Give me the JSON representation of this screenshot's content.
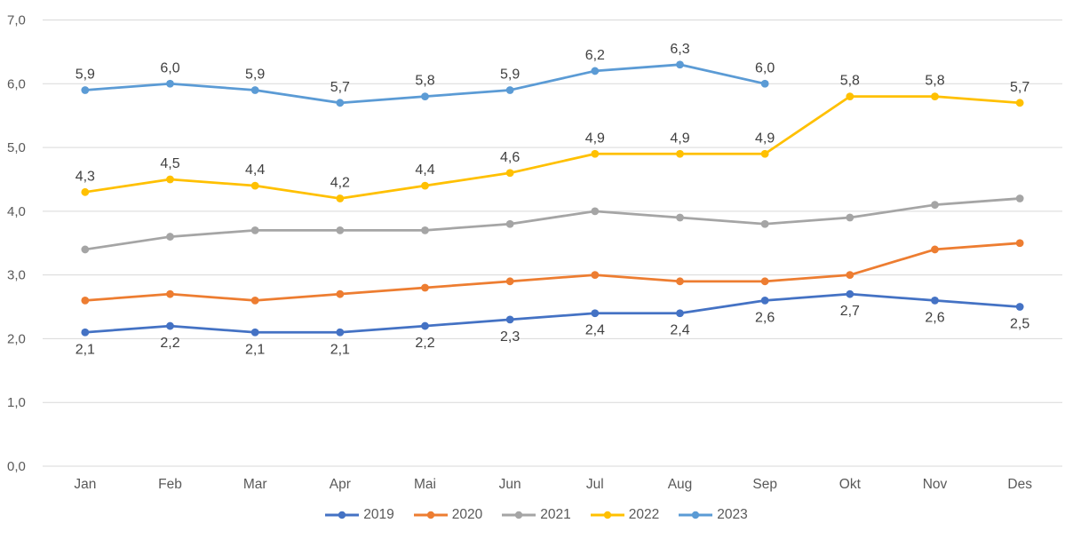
{
  "page": {
    "background_color": "#ffffff"
  },
  "chart_data": {
    "type": "line",
    "title": "",
    "xlabel": "",
    "ylabel": "",
    "categories": [
      "Jan",
      "Feb",
      "Mar",
      "Apr",
      "Mai",
      "Jun",
      "Jul",
      "Aug",
      "Sep",
      "Okt",
      "Nov",
      "Des"
    ],
    "series": [
      {
        "name": "2019",
        "color": "#4472C4",
        "values": [
          2.1,
          2.2,
          2.1,
          2.1,
          2.2,
          2.3,
          2.4,
          2.4,
          2.6,
          2.7,
          2.6,
          2.5
        ],
        "data_labels": [
          "2,1",
          "2,2",
          "2,1",
          "2,1",
          "2,2",
          "2,3",
          "2,4",
          "2,4",
          "2,6",
          "2,7",
          "2,6",
          "2,5"
        ],
        "label_position": "below"
      },
      {
        "name": "2020",
        "color": "#ED7D31",
        "values": [
          2.6,
          2.7,
          2.6,
          2.7,
          2.8,
          2.9,
          3.0,
          2.9,
          2.9,
          3.0,
          3.4,
          3.5
        ],
        "data_labels": null,
        "label_position": "none"
      },
      {
        "name": "2021",
        "color": "#A5A5A5",
        "values": [
          3.4,
          3.6,
          3.7,
          3.7,
          3.7,
          3.8,
          4.0,
          3.9,
          3.8,
          3.9,
          4.1,
          4.2
        ],
        "data_labels": null,
        "label_position": "none"
      },
      {
        "name": "2022",
        "color": "#FFC000",
        "values": [
          4.3,
          4.5,
          4.4,
          4.2,
          4.4,
          4.6,
          4.9,
          4.9,
          4.9,
          5.8,
          5.8,
          5.7
        ],
        "data_labels": [
          "4,3",
          "4,5",
          "4,4",
          "4,2",
          "4,4",
          "4,6",
          "4,9",
          "4,9",
          "4,9",
          "5,8",
          "5,8",
          "5,7"
        ],
        "label_position": "above"
      },
      {
        "name": "2023",
        "color": "#5B9BD5",
        "values": [
          5.9,
          6.0,
          5.9,
          5.7,
          5.8,
          5.9,
          6.2,
          6.3,
          6.0
        ],
        "data_labels": [
          "5,9",
          "6,0",
          "5,9",
          "5,7",
          "5,8",
          "5,9",
          "6,2",
          "6,3",
          "6,0"
        ],
        "label_position": "above"
      }
    ],
    "ylim": [
      0,
      7
    ],
    "ytick_step": 1,
    "ytick_labels": [
      "0,0",
      "1,0",
      "2,0",
      "3,0",
      "4,0",
      "5,0",
      "6,0",
      "7,0"
    ],
    "decimal_separator": ",",
    "grid": true,
    "gridline_color": "#D9D9D9",
    "axis_text_color": "#595959",
    "data_label_color": "#404040",
    "legend_position": "bottom",
    "legend_labels": [
      "2019",
      "2020",
      "2021",
      "2022",
      "2023"
    ]
  }
}
